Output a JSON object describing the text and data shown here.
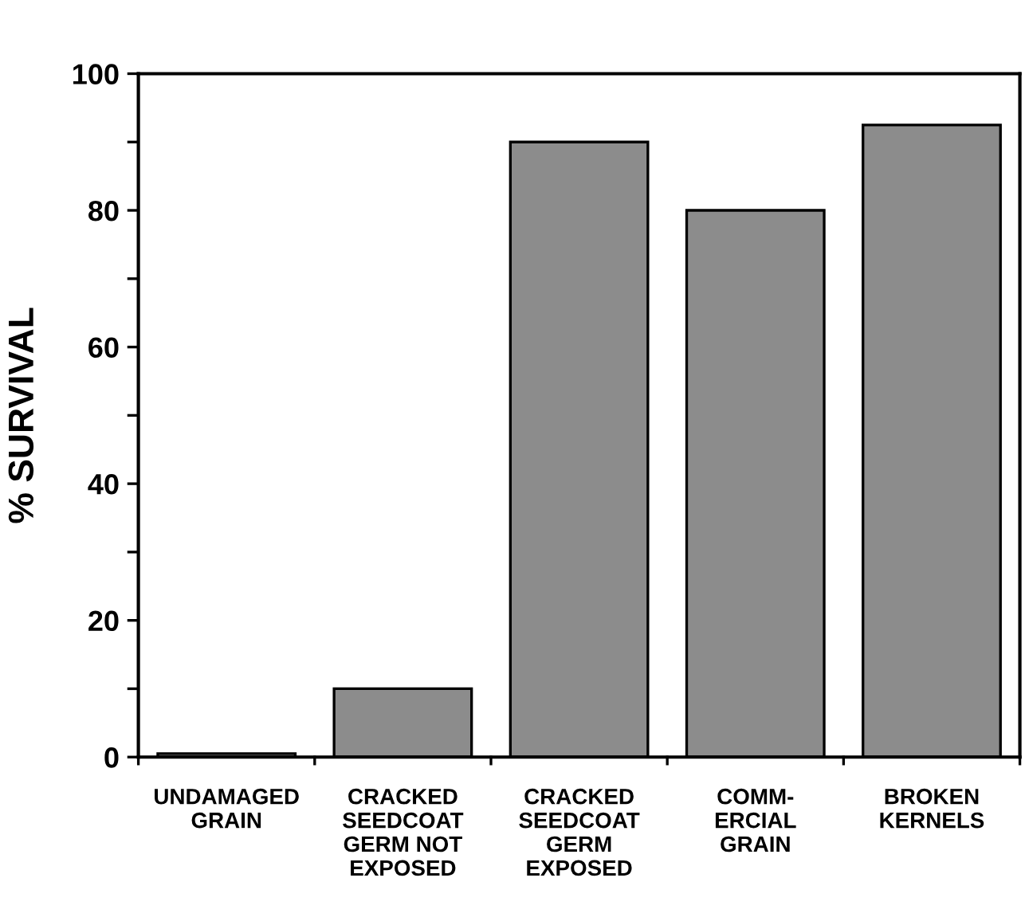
{
  "chart_data": {
    "type": "bar",
    "ylabel": "% SURVIVAL",
    "categories": [
      "UNDAMAGED\nGRAIN",
      "CRACKED\nSEEDCOAT\nGERM NOT\nEXPOSED",
      "CRACKED\nSEEDCOAT\nGERM\nEXPOSED",
      "COMM-\nERCIAL\nGRAIN",
      "BROKEN\nKERNELS"
    ],
    "values": [
      0.5,
      10,
      90,
      80,
      92.5
    ],
    "color": "#8c8c8c",
    "ylim": [
      0,
      100
    ],
    "yticks": [
      0,
      20,
      40,
      60,
      80,
      100
    ],
    "grid": false
  }
}
